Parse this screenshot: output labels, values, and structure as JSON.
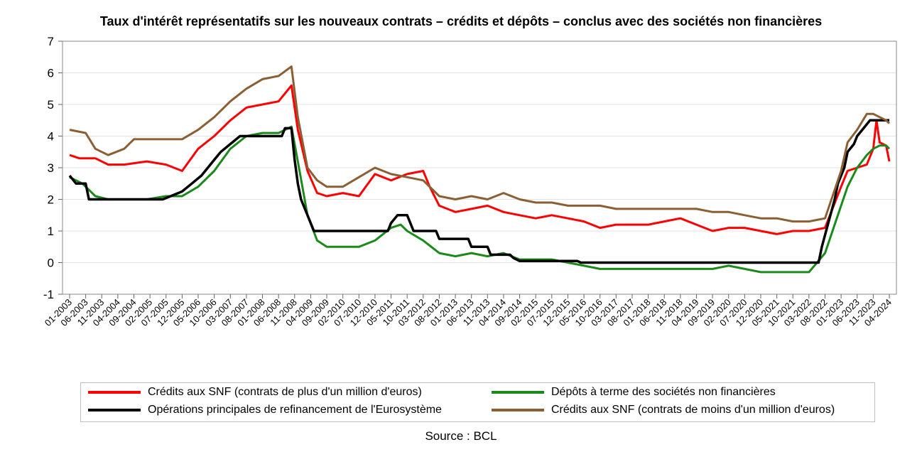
{
  "chart_data": {
    "type": "line",
    "title": "Taux d'intérêt représentatifs sur les nouveaux contrats – crédits et dépôts – conclus avec des sociétés non financières",
    "xlabel": "",
    "ylabel": "",
    "ylim": [
      -1,
      7
    ],
    "yticks": [
      "7",
      "6",
      "5",
      "4",
      "3",
      "2",
      "1",
      "0",
      "-1"
    ],
    "grid": true,
    "legend_position": "bottom",
    "x_start": "01-2003",
    "x_end": "04-2024",
    "xticks": [
      "01-2003",
      "06-2003",
      "11-2003",
      "04-2004",
      "09-2004",
      "02-2005",
      "07-2005",
      "12-2005",
      "05-2006",
      "10-2006",
      "03-2007",
      "08-2007",
      "01-2008",
      "06-2008",
      "11-2008",
      "04-2009",
      "09-2009",
      "02-2010",
      "07-2010",
      "12-2010",
      "05-2011",
      "10-2011",
      "03-2012",
      "08-2012",
      "01-2013",
      "06-2013",
      "11-2013",
      "04-2014",
      "09-2014",
      "02-2015",
      "07-2015",
      "12-2015",
      "05-2016",
      "10-2016",
      "03-2017",
      "08-2017",
      "01-2018",
      "06-2018",
      "11-2018",
      "04-2019",
      "09-2019",
      "02-2020",
      "07-2020",
      "12-2020",
      "05-2021",
      "10-2021",
      "03-2022",
      "08-2022",
      "01-2023",
      "06-2023",
      "11-2023",
      "04-2024"
    ],
    "series": [
      {
        "name": "Crédits aux SNF (contrats de plus d'un million d'euros)",
        "color": "#ff0000",
        "points": [
          [
            "01-2003",
            3.4
          ],
          [
            "04-2003",
            3.3
          ],
          [
            "09-2003",
            3.3
          ],
          [
            "01-2004",
            3.1
          ],
          [
            "06-2004",
            3.1
          ],
          [
            "01-2005",
            3.2
          ],
          [
            "07-2005",
            3.1
          ],
          [
            "12-2005",
            2.9
          ],
          [
            "05-2006",
            3.6
          ],
          [
            "10-2006",
            4.0
          ],
          [
            "03-2007",
            4.5
          ],
          [
            "08-2007",
            4.9
          ],
          [
            "01-2008",
            5.0
          ],
          [
            "06-2008",
            5.1
          ],
          [
            "10-2008",
            5.6
          ],
          [
            "12-2008",
            4.2
          ],
          [
            "03-2009",
            2.9
          ],
          [
            "06-2009",
            2.2
          ],
          [
            "09-2009",
            2.1
          ],
          [
            "02-2010",
            2.2
          ],
          [
            "07-2010",
            2.1
          ],
          [
            "12-2010",
            2.8
          ],
          [
            "05-2011",
            2.6
          ],
          [
            "10-2011",
            2.8
          ],
          [
            "03-2012",
            2.9
          ],
          [
            "05-2012",
            2.4
          ],
          [
            "08-2012",
            1.8
          ],
          [
            "01-2013",
            1.6
          ],
          [
            "06-2013",
            1.7
          ],
          [
            "11-2013",
            1.8
          ],
          [
            "04-2014",
            1.6
          ],
          [
            "09-2014",
            1.5
          ],
          [
            "02-2015",
            1.4
          ],
          [
            "07-2015",
            1.5
          ],
          [
            "12-2015",
            1.4
          ],
          [
            "05-2016",
            1.3
          ],
          [
            "10-2016",
            1.1
          ],
          [
            "03-2017",
            1.2
          ],
          [
            "08-2017",
            1.2
          ],
          [
            "01-2018",
            1.2
          ],
          [
            "06-2018",
            1.3
          ],
          [
            "11-2018",
            1.4
          ],
          [
            "04-2019",
            1.2
          ],
          [
            "09-2019",
            1.0
          ],
          [
            "02-2020",
            1.1
          ],
          [
            "07-2020",
            1.1
          ],
          [
            "12-2020",
            1.0
          ],
          [
            "05-2021",
            0.9
          ],
          [
            "10-2021",
            1.0
          ],
          [
            "03-2022",
            1.0
          ],
          [
            "08-2022",
            1.1
          ],
          [
            "01-2023",
            2.4
          ],
          [
            "03-2023",
            2.9
          ],
          [
            "06-2023",
            3.0
          ],
          [
            "09-2023",
            3.1
          ],
          [
            "11-2023",
            3.6
          ],
          [
            "12-2023",
            4.5
          ],
          [
            "01-2024",
            3.8
          ],
          [
            "03-2024",
            3.7
          ],
          [
            "04-2024",
            3.2
          ]
        ]
      },
      {
        "name": "Dépôts à terme des sociétés non financières",
        "color": "#1a8a1a",
        "points": [
          [
            "01-2003",
            2.7
          ],
          [
            "05-2003",
            2.5
          ],
          [
            "09-2003",
            2.1
          ],
          [
            "01-2004",
            2.0
          ],
          [
            "06-2004",
            2.0
          ],
          [
            "01-2005",
            2.0
          ],
          [
            "07-2005",
            2.1
          ],
          [
            "12-2005",
            2.1
          ],
          [
            "05-2006",
            2.4
          ],
          [
            "10-2006",
            2.9
          ],
          [
            "03-2007",
            3.6
          ],
          [
            "08-2007",
            4.0
          ],
          [
            "01-2008",
            4.1
          ],
          [
            "06-2008",
            4.1
          ],
          [
            "10-2008",
            4.3
          ],
          [
            "12-2008",
            3.2
          ],
          [
            "03-2009",
            1.5
          ],
          [
            "06-2009",
            0.7
          ],
          [
            "09-2009",
            0.5
          ],
          [
            "02-2010",
            0.5
          ],
          [
            "07-2010",
            0.5
          ],
          [
            "12-2010",
            0.7
          ],
          [
            "05-2011",
            1.1
          ],
          [
            "08-2011",
            1.2
          ],
          [
            "10-2011",
            1.0
          ],
          [
            "03-2012",
            0.7
          ],
          [
            "08-2012",
            0.3
          ],
          [
            "01-2013",
            0.2
          ],
          [
            "06-2013",
            0.3
          ],
          [
            "11-2013",
            0.2
          ],
          [
            "04-2014",
            0.3
          ],
          [
            "09-2014",
            0.1
          ],
          [
            "02-2015",
            0.1
          ],
          [
            "07-2015",
            0.1
          ],
          [
            "12-2015",
            0.0
          ],
          [
            "05-2016",
            -0.1
          ],
          [
            "10-2016",
            -0.2
          ],
          [
            "03-2017",
            -0.2
          ],
          [
            "08-2017",
            -0.2
          ],
          [
            "01-2018",
            -0.2
          ],
          [
            "06-2018",
            -0.2
          ],
          [
            "11-2018",
            -0.2
          ],
          [
            "04-2019",
            -0.2
          ],
          [
            "09-2019",
            -0.2
          ],
          [
            "02-2020",
            -0.1
          ],
          [
            "07-2020",
            -0.2
          ],
          [
            "12-2020",
            -0.3
          ],
          [
            "05-2021",
            -0.3
          ],
          [
            "10-2021",
            -0.3
          ],
          [
            "03-2022",
            -0.3
          ],
          [
            "08-2022",
            0.3
          ],
          [
            "01-2023",
            1.8
          ],
          [
            "03-2023",
            2.4
          ],
          [
            "06-2023",
            3.0
          ],
          [
            "09-2023",
            3.4
          ],
          [
            "11-2023",
            3.6
          ],
          [
            "01-2024",
            3.7
          ],
          [
            "03-2024",
            3.7
          ],
          [
            "04-2024",
            3.6
          ]
        ]
      },
      {
        "name": "Opérations principales de refinancement de l'Eurosystème",
        "color": "#000000",
        "points": [
          [
            "01-2003",
            2.75
          ],
          [
            "03-2003",
            2.5
          ],
          [
            "06-2003",
            2.5
          ],
          [
            "07-2003",
            2.0
          ],
          [
            "06-2005",
            2.0
          ],
          [
            "12-2005",
            2.25
          ],
          [
            "03-2006",
            2.5
          ],
          [
            "06-2006",
            2.75
          ],
          [
            "08-2006",
            3.0
          ],
          [
            "10-2006",
            3.25
          ],
          [
            "12-2006",
            3.5
          ],
          [
            "03-2007",
            3.75
          ],
          [
            "06-2007",
            4.0
          ],
          [
            "07-2008",
            4.0
          ],
          [
            "08-2008",
            4.25
          ],
          [
            "10-2008",
            4.25
          ],
          [
            "11-2008",
            3.25
          ],
          [
            "12-2008",
            2.5
          ],
          [
            "01-2009",
            2.0
          ],
          [
            "03-2009",
            1.5
          ],
          [
            "04-2009",
            1.25
          ],
          [
            "05-2009",
            1.0
          ],
          [
            "04-2011",
            1.0
          ],
          [
            "05-2011",
            1.25
          ],
          [
            "07-2011",
            1.5
          ],
          [
            "10-2011",
            1.5
          ],
          [
            "11-2011",
            1.25
          ],
          [
            "12-2011",
            1.0
          ],
          [
            "07-2012",
            1.0
          ],
          [
            "08-2012",
            0.75
          ],
          [
            "05-2013",
            0.75
          ],
          [
            "06-2013",
            0.5
          ],
          [
            "11-2013",
            0.5
          ],
          [
            "12-2013",
            0.25
          ],
          [
            "06-2014",
            0.25
          ],
          [
            "07-2014",
            0.15
          ],
          [
            "09-2014",
            0.05
          ],
          [
            "03-2016",
            0.05
          ],
          [
            "04-2016",
            0.0
          ],
          [
            "06-2022",
            0.0
          ],
          [
            "07-2022",
            0.5
          ],
          [
            "09-2022",
            1.25
          ],
          [
            "11-2022",
            2.0
          ],
          [
            "12-2022",
            2.5
          ],
          [
            "02-2023",
            3.0
          ],
          [
            "03-2023",
            3.5
          ],
          [
            "05-2023",
            3.75
          ],
          [
            "06-2023",
            4.0
          ],
          [
            "08-2023",
            4.25
          ],
          [
            "10-2023",
            4.5
          ],
          [
            "04-2024",
            4.5
          ]
        ]
      },
      {
        "name": "Crédits aux SNF (contrats de moins d'un million d'euros)",
        "color": "#8b5e34",
        "points": [
          [
            "01-2003",
            4.2
          ],
          [
            "06-2003",
            4.1
          ],
          [
            "09-2003",
            3.6
          ],
          [
            "01-2004",
            3.4
          ],
          [
            "06-2004",
            3.6
          ],
          [
            "09-2004",
            3.9
          ],
          [
            "02-2005",
            3.9
          ],
          [
            "07-2005",
            3.9
          ],
          [
            "12-2005",
            3.9
          ],
          [
            "05-2006",
            4.2
          ],
          [
            "10-2006",
            4.6
          ],
          [
            "03-2007",
            5.1
          ],
          [
            "08-2007",
            5.5
          ],
          [
            "01-2008",
            5.8
          ],
          [
            "06-2008",
            5.9
          ],
          [
            "10-2008",
            6.2
          ],
          [
            "12-2008",
            4.6
          ],
          [
            "03-2009",
            3.0
          ],
          [
            "06-2009",
            2.6
          ],
          [
            "09-2009",
            2.4
          ],
          [
            "02-2010",
            2.4
          ],
          [
            "07-2010",
            2.7
          ],
          [
            "12-2010",
            3.0
          ],
          [
            "05-2011",
            2.8
          ],
          [
            "10-2011",
            2.7
          ],
          [
            "03-2012",
            2.6
          ],
          [
            "08-2012",
            2.1
          ],
          [
            "01-2013",
            2.0
          ],
          [
            "06-2013",
            2.1
          ],
          [
            "11-2013",
            2.0
          ],
          [
            "04-2014",
            2.2
          ],
          [
            "09-2014",
            2.0
          ],
          [
            "02-2015",
            1.9
          ],
          [
            "07-2015",
            1.9
          ],
          [
            "12-2015",
            1.8
          ],
          [
            "05-2016",
            1.8
          ],
          [
            "10-2016",
            1.8
          ],
          [
            "03-2017",
            1.7
          ],
          [
            "08-2017",
            1.7
          ],
          [
            "01-2018",
            1.7
          ],
          [
            "06-2018",
            1.7
          ],
          [
            "11-2018",
            1.7
          ],
          [
            "04-2019",
            1.7
          ],
          [
            "09-2019",
            1.6
          ],
          [
            "02-2020",
            1.6
          ],
          [
            "07-2020",
            1.5
          ],
          [
            "12-2020",
            1.4
          ],
          [
            "05-2021",
            1.4
          ],
          [
            "10-2021",
            1.3
          ],
          [
            "03-2022",
            1.3
          ],
          [
            "08-2022",
            1.4
          ],
          [
            "01-2023",
            2.9
          ],
          [
            "03-2023",
            3.8
          ],
          [
            "06-2023",
            4.2
          ],
          [
            "09-2023",
            4.7
          ],
          [
            "11-2023",
            4.7
          ],
          [
            "01-2024",
            4.6
          ],
          [
            "03-2024",
            4.5
          ],
          [
            "04-2024",
            4.4
          ]
        ]
      }
    ],
    "source": "Source : BCL"
  },
  "legend": {
    "items": [
      {
        "label": "Crédits aux SNF (contrats de plus d'un million d'euros)",
        "color": "#ff0000"
      },
      {
        "label": "Dépôts à terme des sociétés non financières",
        "color": "#1a8a1a"
      },
      {
        "label": "Opérations principales de refinancement de l'Eurosystème",
        "color": "#000000"
      },
      {
        "label": "Crédits aux SNF (contrats de moins d'un million d'euros)",
        "color": "#8b5e34"
      }
    ]
  }
}
